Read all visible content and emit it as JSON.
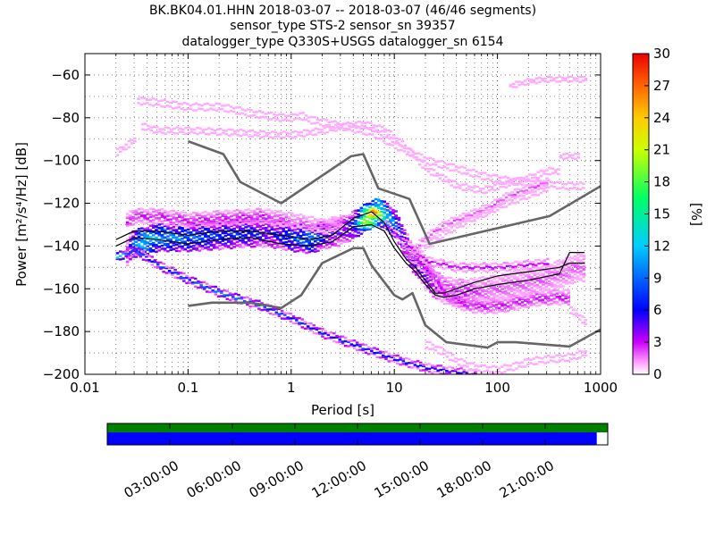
{
  "title": {
    "line1": "BK.BK04.01.HHN   2018-03-07 -- 2018-03-07  (46/46 segments)",
    "line2": "sensor_type STS-2 sensor_sn 39357",
    "line3": "datalogger_type Q330S+USGS datalogger_sn 6154"
  },
  "chart_data": {
    "type": "heatmap",
    "xlabel": "Period [s]",
    "ylabel": "Power [m²/s⁴/Hz] [dB]",
    "x_scale": "log",
    "xlim": [
      0.01,
      1000
    ],
    "ylim": [
      -200,
      -50
    ],
    "x_ticks": [
      0.01,
      0.1,
      1,
      10,
      100,
      1000
    ],
    "x_tick_labels": [
      "0.01",
      "0.1",
      "1",
      "10",
      "100",
      "1000"
    ],
    "y_ticks": [
      -200,
      -180,
      -160,
      -140,
      -120,
      -100,
      -80,
      -60
    ],
    "y_tick_labels": [
      "−200",
      "−180",
      "−160",
      "−140",
      "−120",
      "−100",
      "−80",
      "−60"
    ],
    "grid": true,
    "colorbar": {
      "label": "[%]",
      "min": 0,
      "max": 30,
      "ticks": [
        0,
        3,
        6,
        9,
        12,
        15,
        18,
        21,
        24,
        27,
        30
      ]
    },
    "series": [
      {
        "role": "new-high-noise-model",
        "x": [
          0.1,
          0.22,
          0.32,
          0.8,
          3.8,
          5.0,
          7.0,
          14,
          22,
          320,
          1000
        ],
        "y": [
          -91,
          -97,
          -110,
          -120,
          -98,
          -97,
          -113,
          -118,
          -139,
          -126,
          -112
        ]
      },
      {
        "role": "new-low-noise-model",
        "x": [
          0.1,
          0.17,
          0.4,
          0.8,
          1.25,
          2.0,
          4.0,
          5.0,
          6.0,
          10,
          12,
          15,
          20,
          32,
          80,
          100,
          150,
          500,
          1000
        ],
        "y": [
          -168,
          -166.5,
          -166.5,
          -169,
          -163,
          -148,
          -141,
          -141,
          -149,
          -163,
          -165,
          -162,
          -177,
          -185,
          -187.5,
          -185,
          -185,
          -187,
          -179
        ]
      },
      {
        "role": "mode-curve",
        "x": [
          0.02,
          0.03,
          0.05,
          0.1,
          0.2,
          0.4,
          0.8,
          1.5,
          2.5,
          4,
          6,
          8,
          10,
          13,
          16,
          20,
          25,
          30,
          40,
          60,
          100,
          200,
          400,
          500,
          700
        ],
        "y": [
          -137,
          -133,
          -133,
          -135,
          -133,
          -133,
          -135,
          -137,
          -135,
          -127,
          -124,
          -129,
          -138,
          -146,
          -150,
          -156,
          -162,
          -162,
          -160,
          -157,
          -154,
          -152,
          -150,
          -148,
          -148
        ]
      },
      {
        "role": "lower-percentile-curve",
        "x": [
          0.02,
          0.03,
          0.05,
          0.1,
          0.2,
          0.4,
          0.8,
          1.5,
          2.5,
          4,
          6,
          8,
          10,
          13,
          16,
          20,
          25,
          30,
          40,
          60,
          100,
          200,
          400,
          500,
          700
        ],
        "y": [
          -140,
          -136,
          -137,
          -139,
          -137,
          -136,
          -139,
          -140,
          -138,
          -131,
          -130,
          -133,
          -141,
          -148,
          -152,
          -158,
          -163,
          -164,
          -163,
          -160,
          -158,
          -156,
          -153,
          -143,
          -143
        ]
      }
    ],
    "psd_bands": [
      {
        "x": [
          0.025,
          0.028,
          0.035,
          0.05,
          0.1,
          0.2,
          0.35,
          0.6,
          1.0,
          1.5,
          2.0,
          3.0,
          4.0,
          5.0,
          6.0,
          7.0,
          8.0,
          10,
          12,
          14,
          16,
          18,
          20,
          24,
          28,
          32,
          40,
          50,
          70,
          100,
          150,
          200,
          300,
          450,
          600,
          700
        ],
        "y": [
          -143,
          -139,
          -138,
          -136,
          -136,
          -135,
          -134,
          -134,
          -136,
          -137,
          -135,
          -133,
          -130,
          -127,
          -125,
          -124,
          -126,
          -130,
          -138,
          -144,
          -148,
          -151,
          -154,
          -158,
          -160,
          -161,
          -162,
          -162,
          -161,
          -160,
          -158,
          -157,
          -155,
          -152,
          -150,
          -150
        ],
        "spread": 6,
        "percent": [
          3,
          8,
          13,
          11,
          9,
          7,
          7,
          5,
          8,
          10,
          6,
          4,
          7,
          22,
          27,
          20,
          14,
          9,
          7,
          6,
          6,
          5,
          5,
          4,
          3,
          3,
          3,
          3,
          2,
          2,
          2,
          2,
          2,
          2,
          2,
          2
        ]
      },
      {
        "x": [
          0.025,
          0.03,
          0.05,
          0.1,
          0.2,
          0.5,
          1.0,
          2.0,
          3.0
        ],
        "y": [
          -128,
          -126,
          -126,
          -128,
          -127,
          -126,
          -128,
          -131,
          -129
        ],
        "spread": 3,
        "percent": [
          3,
          3,
          3,
          3,
          3,
          3,
          2,
          2,
          2
        ]
      },
      {
        "x": [
          0.02,
          0.03,
          0.05,
          0.1,
          0.2,
          0.5,
          1.0,
          2.0,
          5,
          10,
          20,
          40,
          60
        ],
        "y": [
          -145,
          -142,
          -149,
          -156,
          -162,
          -168,
          -174,
          -181,
          -188,
          -193,
          -197,
          -199,
          -200
        ],
        "spread": 1.5,
        "percent": [
          12,
          8,
          7,
          8,
          9,
          8,
          7,
          6,
          7,
          6,
          6,
          5,
          4
        ]
      },
      {
        "x": [
          0.032,
          0.05,
          0.1,
          0.2,
          0.4,
          0.8,
          1.0,
          1.2,
          1.5,
          3,
          6,
          10,
          20,
          40,
          80,
          150,
          300,
          450,
          600,
          700
        ],
        "y": [
          -72,
          -73,
          -75,
          -75,
          -78,
          -80,
          -80,
          -79,
          -81,
          -84,
          -87,
          -93,
          -100,
          -104,
          -108,
          -110,
          -111,
          -112,
          -112,
          -112
        ],
        "spread": 1.2,
        "percent": [
          2,
          2,
          2,
          2,
          2,
          2,
          2,
          2,
          2,
          2,
          2,
          2,
          2,
          2,
          2,
          2,
          2,
          2,
          2,
          2
        ]
      },
      {
        "x": [
          0.035,
          0.05,
          0.1,
          0.3,
          0.6,
          1.0,
          2.0,
          3.0,
          5.0,
          8,
          12,
          20,
          40,
          70,
          100,
          200,
          300,
          400
        ],
        "y": [
          -84,
          -86,
          -86,
          -87,
          -88,
          -88,
          -86,
          -84,
          -83,
          -86,
          -93,
          -104,
          -112,
          -114,
          -112,
          -108,
          -105,
          -105
        ],
        "spread": 1,
        "percent": [
          2,
          2,
          2,
          2,
          2,
          2,
          2,
          2,
          2,
          2,
          2,
          2,
          2,
          2,
          2,
          2,
          2,
          2
        ]
      },
      {
        "x": [
          0.02,
          0.025,
          0.03
        ],
        "y": [
          -96,
          -93,
          -90
        ],
        "spread": 1,
        "percent": [
          2,
          2,
          2
        ]
      },
      {
        "x": [
          15,
          20,
          30,
          50,
          80,
          120,
          200,
          300
        ],
        "y": [
          -142,
          -136,
          -130,
          -126,
          -122,
          -117,
          -113,
          -110
        ],
        "spread": 1.5,
        "percent": [
          2,
          2,
          2,
          2,
          2,
          2,
          2,
          2
        ]
      },
      {
        "x": [
          15,
          20,
          30,
          50,
          80,
          120,
          200,
          300
        ],
        "y": [
          -144,
          -140,
          -134,
          -128,
          -124,
          -120,
          -116,
          -113
        ],
        "spread": 1,
        "percent": [
          2,
          2,
          2,
          2,
          2,
          2,
          2,
          2
        ]
      },
      {
        "x": [
          130,
          200,
          300,
          500,
          700
        ],
        "y": [
          -65,
          -63,
          -62,
          -62,
          -62
        ],
        "spread": 0.8,
        "percent": [
          2,
          2,
          2,
          2,
          2
        ]
      },
      {
        "x": [
          400,
          500,
          600
        ],
        "y": [
          -98,
          -98,
          -98
        ],
        "spread": 0.8,
        "percent": [
          2,
          2,
          2
        ]
      },
      {
        "x": [
          20,
          30,
          40,
          60,
          100,
          150,
          200,
          300,
          500,
          700
        ],
        "y": [
          -186,
          -190,
          -194,
          -197,
          -198,
          -196,
          -194,
          -193,
          -192,
          -190
        ],
        "spread": 1.2,
        "percent": [
          2,
          2,
          2,
          2,
          2,
          2,
          2,
          2,
          2,
          2
        ]
      },
      {
        "x": [
          500,
          600,
          700
        ],
        "y": [
          -170,
          -173,
          -176
        ],
        "spread": 1,
        "percent": [
          2,
          2,
          2
        ]
      }
    ],
    "psd_extra_bands": [
      {
        "x": [
          12,
          15,
          20,
          25,
          30,
          40,
          60,
          100,
          200,
          300,
          500
        ],
        "y": [
          -142,
          -145,
          -150,
          -156,
          -162,
          -166,
          -168,
          -168,
          -165,
          -164,
          -164
        ],
        "spread": 3,
        "percent": [
          3,
          3,
          3,
          3,
          3,
          3,
          3,
          3,
          3,
          3,
          3
        ]
      },
      {
        "x": [
          8,
          12,
          20,
          40,
          100,
          300
        ],
        "y": [
          -130,
          -138,
          -147,
          -150,
          -150,
          -148
        ],
        "spread": 1.5,
        "percent": [
          3,
          3,
          3,
          3,
          3,
          3
        ]
      }
    ]
  },
  "time_panel": {
    "data_available_color": "#0000ff",
    "gaps_color": "#ffffff",
    "top_strip_color": "#008000",
    "data_fraction": 0.978,
    "hours": [
      3,
      6,
      9,
      12,
      15,
      18,
      21
    ],
    "labels": [
      "03:00:00",
      "06:00:00",
      "09:00:00",
      "12:00:00",
      "15:00:00",
      "18:00:00",
      "21:00:00"
    ]
  }
}
